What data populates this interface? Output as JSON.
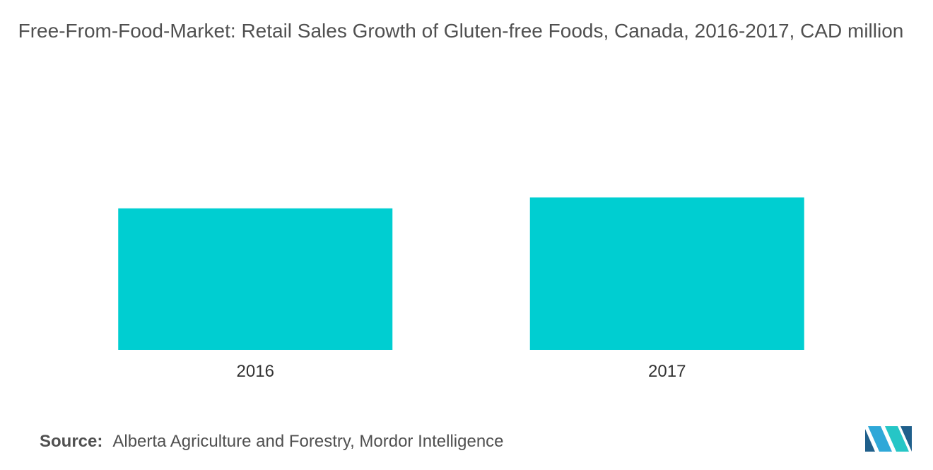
{
  "chart_data": {
    "type": "bar",
    "title": "Free-From-Food-Market: Retail Sales Growth of Gluten-free Foods, Canada, 2016-2017, CAD million",
    "categories": [
      "2016",
      "2017"
    ],
    "values": [
      91,
      98
    ],
    "xlabel": "",
    "ylabel": "",
    "ylim": [
      0,
      120
    ],
    "grid": false,
    "legend": "none",
    "bar_color": "#00CED1"
  },
  "source": {
    "label": "Source:",
    "text": "Alberta Agriculture and Forestry, Mordor Intelligence"
  },
  "logo": {
    "icon": "mordor-intelligence-logo-icon",
    "colors": [
      "#1F5F8B",
      "#2FA8D8",
      "#26C6C6"
    ]
  }
}
